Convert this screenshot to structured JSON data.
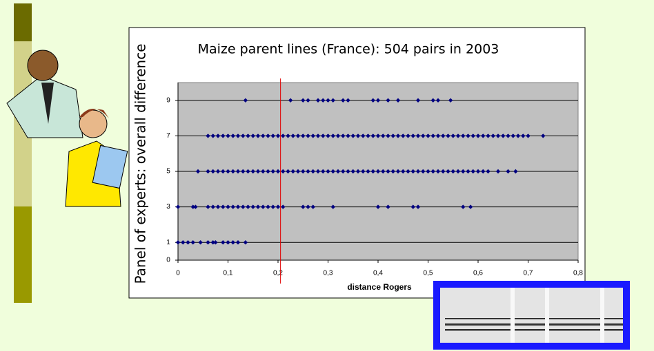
{
  "chart_data": {
    "type": "scatter",
    "title": "Maize parent lines (France):  504 pairs in 2003",
    "x_label": "distance Rogers",
    "y_label": "Panel of experts:  overall difference",
    "xlim": [
      0,
      0.8
    ],
    "ylim": [
      0,
      10
    ],
    "xticks": [
      0,
      {
        "value": 0.1,
        "label": "0,1"
      },
      {
        "value": 0.2,
        "label": "0,2"
      },
      {
        "value": 0.3,
        "label": "0,3"
      },
      {
        "value": 0.4,
        "label": "0,4"
      },
      {
        "value": 0.5,
        "label": "0,5"
      },
      {
        "value": 0.6,
        "label": "0,6"
      },
      {
        "value": 0.7,
        "label": "0,7"
      },
      {
        "value": 0.8,
        "label": "0,8"
      }
    ],
    "yticks": [
      0,
      1,
      3,
      5,
      7,
      9
    ],
    "grid": true,
    "reference_line": {
      "x": 0.205,
      "color": "#e00000"
    },
    "series": [
      {
        "color": "#000080",
        "x": [
          0,
          0.01,
          0.02,
          0.03,
          0.045,
          0.06,
          0.07,
          0.075,
          0.09,
          0.1,
          0.11,
          0.12,
          0.135
        ],
        "values": [
          1,
          1,
          1,
          1,
          1,
          1,
          1,
          1,
          1,
          1,
          1,
          1,
          1
        ]
      },
      {
        "color": "#000080",
        "x": [
          0,
          0.03,
          0.035,
          0.06,
          0.07,
          0.08,
          0.09,
          0.1,
          0.11,
          0.12,
          0.13,
          0.14,
          0.15,
          0.16,
          0.17,
          0.18,
          0.19,
          0.2,
          0.21,
          0.25,
          0.26,
          0.27,
          0.31,
          0.4,
          0.42,
          0.47,
          0.48,
          0.57,
          0.585
        ],
        "values": [
          3,
          3,
          3,
          3,
          3,
          3,
          3,
          3,
          3,
          3,
          3,
          3,
          3,
          3,
          3,
          3,
          3,
          3,
          3,
          3,
          3,
          3,
          3,
          3,
          3,
          3,
          3,
          3,
          3
        ]
      },
      {
        "color": "#000080",
        "x": [
          0.04,
          0.06,
          0.07,
          0.08,
          0.09,
          0.1,
          0.11,
          0.12,
          0.13,
          0.14,
          0.15,
          0.16,
          0.17,
          0.18,
          0.19,
          0.2,
          0.21,
          0.22,
          0.23,
          0.24,
          0.25,
          0.26,
          0.27,
          0.28,
          0.29,
          0.3,
          0.31,
          0.32,
          0.33,
          0.34,
          0.35,
          0.36,
          0.37,
          0.38,
          0.39,
          0.4,
          0.41,
          0.42,
          0.43,
          0.44,
          0.45,
          0.46,
          0.47,
          0.48,
          0.49,
          0.5,
          0.51,
          0.52,
          0.53,
          0.54,
          0.55,
          0.56,
          0.57,
          0.58,
          0.59,
          0.6,
          0.61,
          0.62,
          0.64,
          0.66,
          0.675
        ],
        "values": [
          5,
          5,
          5,
          5,
          5,
          5,
          5,
          5,
          5,
          5,
          5,
          5,
          5,
          5,
          5,
          5,
          5,
          5,
          5,
          5,
          5,
          5,
          5,
          5,
          5,
          5,
          5,
          5,
          5,
          5,
          5,
          5,
          5,
          5,
          5,
          5,
          5,
          5,
          5,
          5,
          5,
          5,
          5,
          5,
          5,
          5,
          5,
          5,
          5,
          5,
          5,
          5,
          5,
          5,
          5,
          5,
          5,
          5,
          5,
          5,
          5
        ]
      },
      {
        "color": "#000080",
        "x": [
          0.06,
          0.07,
          0.08,
          0.09,
          0.1,
          0.11,
          0.12,
          0.13,
          0.14,
          0.15,
          0.16,
          0.17,
          0.18,
          0.19,
          0.2,
          0.21,
          0.22,
          0.23,
          0.24,
          0.25,
          0.26,
          0.27,
          0.28,
          0.29,
          0.3,
          0.31,
          0.32,
          0.33,
          0.34,
          0.35,
          0.36,
          0.37,
          0.38,
          0.39,
          0.4,
          0.41,
          0.42,
          0.43,
          0.44,
          0.45,
          0.46,
          0.47,
          0.48,
          0.49,
          0.5,
          0.51,
          0.52,
          0.53,
          0.54,
          0.55,
          0.56,
          0.57,
          0.58,
          0.59,
          0.6,
          0.61,
          0.62,
          0.63,
          0.64,
          0.65,
          0.66,
          0.67,
          0.68,
          0.69,
          0.7,
          0.73
        ],
        "values": [
          7,
          7,
          7,
          7,
          7,
          7,
          7,
          7,
          7,
          7,
          7,
          7,
          7,
          7,
          7,
          7,
          7,
          7,
          7,
          7,
          7,
          7,
          7,
          7,
          7,
          7,
          7,
          7,
          7,
          7,
          7,
          7,
          7,
          7,
          7,
          7,
          7,
          7,
          7,
          7,
          7,
          7,
          7,
          7,
          7,
          7,
          7,
          7,
          7,
          7,
          7,
          7,
          7,
          7,
          7,
          7,
          7,
          7,
          7,
          7,
          7,
          7,
          7,
          7,
          7,
          7
        ]
      },
      {
        "color": "#000080",
        "x": [
          0.135,
          0.225,
          0.25,
          0.26,
          0.28,
          0.29,
          0.3,
          0.31,
          0.33,
          0.34,
          0.39,
          0.4,
          0.42,
          0.44,
          0.48,
          0.51,
          0.52,
          0.545
        ],
        "values": [
          9,
          9,
          9,
          9,
          9,
          9,
          9,
          9,
          9,
          9,
          9,
          9,
          9,
          9,
          9,
          9,
          9,
          9
        ]
      }
    ]
  }
}
